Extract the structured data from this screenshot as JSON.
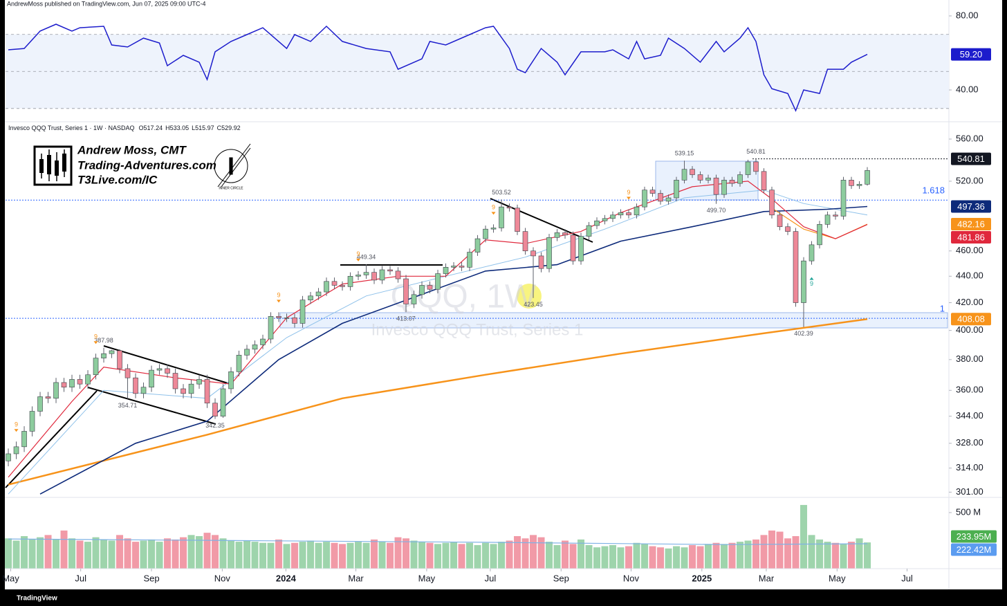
{
  "header": {
    "published": "AndrewMoss published on TradingView.com, Jun 07, 2025 09:00 UTC-4"
  },
  "logo": {
    "name": "Andrew Moss, CMT",
    "site": "Trading-Adventures.com",
    "site2": "T3Live.com/IC",
    "badge": "INNER CIRCLE"
  },
  "footer": {
    "brand": "TradingView"
  },
  "chart_data": {
    "type": "candlestick",
    "title": "Invesco QQQ Trust, Series 1 · 1W · NASDAQ",
    "legend_ohlc": [
      {
        "value": 517.24,
        "label": "O517.24"
      },
      {
        "value": 533.05,
        "label": "H533.05"
      },
      {
        "value": 515.97,
        "label": "L515.97"
      },
      {
        "value": 529.92,
        "label": "C529.92"
      }
    ],
    "watermark": {
      "symbol": "QQQ, 1W",
      "name": "Invesco QQQ Trust, Series 1"
    },
    "up_color": "#8dcc9e",
    "down_color": "#ee8898",
    "log": true,
    "x": [
      0,
      1,
      2,
      3,
      4,
      5,
      6,
      7,
      8,
      9,
      10,
      11,
      12,
      13,
      14,
      15,
      16,
      17,
      18,
      19,
      20,
      21,
      22,
      23,
      24,
      25,
      26,
      27,
      28,
      29,
      30,
      31,
      32,
      33,
      34,
      35,
      36,
      37,
      38,
      39,
      40,
      41,
      42,
      43,
      44,
      45,
      46,
      47,
      48,
      49,
      50,
      51,
      52,
      53,
      54,
      55,
      56,
      57,
      58,
      59,
      60,
      61,
      62,
      63,
      64,
      65,
      66,
      67,
      68,
      69,
      70,
      71,
      72,
      73,
      74,
      75,
      76,
      77,
      78,
      79,
      80,
      81,
      82,
      83,
      84,
      85,
      86,
      87,
      88,
      89,
      90,
      91,
      92,
      93,
      94,
      95,
      96,
      97,
      98,
      99,
      100,
      101,
      102,
      103,
      104,
      105,
      106,
      107,
      108
    ],
    "open": [
      318,
      322,
      326,
      335,
      347,
      356,
      355,
      365,
      362,
      367,
      364,
      370,
      381,
      384,
      386,
      374,
      368,
      358,
      362,
      373,
      374,
      371,
      361,
      358,
      364,
      367,
      352,
      344,
      361,
      372,
      383,
      387,
      390,
      394,
      410,
      409,
      409,
      405,
      422,
      425,
      428,
      436,
      433,
      432,
      440,
      441,
      443,
      437,
      445,
      444,
      438,
      419,
      426,
      433,
      430,
      442,
      447,
      448,
      447,
      459,
      470,
      478,
      479,
      497,
      496,
      476,
      460,
      456,
      446,
      471,
      475,
      473,
      452,
      472,
      481,
      485,
      487,
      490,
      492,
      490,
      497,
      512,
      509,
      502,
      505,
      521,
      531,
      526,
      521,
      523,
      508,
      521,
      518,
      526,
      538,
      529,
      512,
      490,
      480,
      476,
      420,
      452,
      465,
      482,
      490,
      489,
      521,
      516,
      517.24
    ],
    "high": [
      325,
      329,
      338,
      350,
      359,
      359,
      368,
      368,
      370,
      370,
      373,
      384,
      387.98,
      386.5,
      387,
      377,
      371,
      365,
      376,
      377,
      377,
      374,
      364,
      367,
      370,
      370,
      355,
      364,
      375,
      386,
      390,
      393,
      397,
      413,
      413,
      412,
      412,
      425,
      428,
      431,
      439,
      439,
      436,
      443,
      444,
      449.34,
      446,
      448,
      448,
      447,
      441,
      429,
      436,
      436,
      445,
      450,
      451,
      451,
      462,
      473,
      481,
      482,
      503.52,
      500,
      499,
      479,
      463,
      459,
      474,
      478,
      478,
      476,
      475,
      484,
      488,
      490,
      493,
      495,
      495,
      500,
      515,
      515,
      512,
      508,
      524,
      539.15,
      534,
      529,
      526,
      526,
      524,
      524,
      529,
      540,
      540.81,
      532,
      515,
      493,
      483,
      479,
      455,
      468,
      485,
      493,
      493,
      524,
      524,
      520,
      533.05
    ],
    "low": [
      315,
      319,
      323,
      332,
      344,
      352,
      352,
      359,
      359,
      361,
      361,
      367,
      378,
      381,
      371,
      354.71,
      355,
      355,
      359,
      370,
      368,
      358,
      355,
      355,
      361,
      349,
      342.35,
      343,
      358,
      369,
      380,
      384,
      387,
      391,
      406,
      406,
      402,
      402,
      419,
      422,
      425,
      430,
      429,
      429,
      437,
      438,
      434,
      434,
      441,
      435,
      413.07,
      416,
      423,
      427,
      427,
      439,
      444,
      444,
      444,
      456,
      467,
      475,
      476,
      493,
      473,
      457,
      423.45,
      443,
      443,
      468,
      470,
      449,
      449,
      469,
      478,
      482,
      484,
      487,
      487,
      487,
      494,
      506,
      499,
      499,
      502,
      518,
      523,
      518,
      518,
      499.7,
      505,
      515,
      515,
      523,
      526,
      509,
      487,
      477,
      473,
      417,
      402.39,
      449,
      462,
      479,
      486,
      486,
      513,
      513,
      515.97
    ],
    "close": [
      322,
      326,
      335,
      347,
      356,
      355,
      365,
      362,
      367,
      364,
      370,
      381,
      384,
      386,
      374,
      368,
      358,
      362,
      373,
      374,
      371,
      361,
      358,
      364,
      367,
      352,
      344,
      361,
      372,
      383,
      387,
      390,
      394,
      410,
      409,
      409,
      405,
      422,
      425,
      428,
      436,
      433,
      432,
      440,
      441,
      443,
      437,
      445,
      444,
      438,
      419,
      426,
      433,
      430,
      442,
      447,
      448,
      447,
      459,
      470,
      478,
      479,
      497,
      496,
      476,
      460,
      456,
      446,
      471,
      475,
      473,
      452,
      472,
      481,
      485,
      487,
      490,
      492,
      490,
      497,
      512,
      509,
      502,
      505,
      521,
      531,
      526,
      521,
      523,
      508,
      521,
      518,
      526,
      538,
      529,
      512,
      490,
      480,
      476,
      420,
      452,
      465,
      482,
      490,
      489,
      521,
      516,
      517.24,
      529.92
    ],
    "xlim": [
      -0.35,
      118.26
    ],
    "xticks": [
      {
        "value": 0.3,
        "label": "May"
      },
      {
        "value": 9.1,
        "label": "Jul"
      },
      {
        "value": 18,
        "label": "Sep"
      },
      {
        "value": 26.9,
        "label": "Nov"
      },
      {
        "value": 34.9,
        "label": "2024"
      },
      {
        "value": 43.7,
        "label": "Mar"
      },
      {
        "value": 52.6,
        "label": "May"
      },
      {
        "value": 60.6,
        "label": "Jul"
      },
      {
        "value": 69.5,
        "label": "Sep"
      },
      {
        "value": 78.3,
        "label": "Nov"
      },
      {
        "value": 87.2,
        "label": "2025"
      },
      {
        "value": 95.3,
        "label": "Mar"
      },
      {
        "value": 104.2,
        "label": "May"
      },
      {
        "value": 113,
        "label": "Jul"
      }
    ],
    "ylim": [
      298.6,
      575.9
    ],
    "yticks": [
      {
        "value": 560,
        "label": "560.00"
      },
      {
        "value": 520,
        "label": "520.00"
      },
      {
        "value": 460,
        "label": "460.00"
      },
      {
        "value": 440,
        "label": "440.00"
      },
      {
        "value": 420,
        "label": "420.00"
      },
      {
        "value": 400,
        "label": "400.00"
      },
      {
        "value": 380,
        "label": "380.00"
      },
      {
        "value": 360,
        "label": "360.00"
      },
      {
        "value": 344,
        "label": "344.00"
      },
      {
        "value": 328,
        "label": "328.00"
      },
      {
        "value": 314,
        "label": "314.00"
      },
      {
        "value": 301,
        "label": "301.00"
      }
    ],
    "lines": [
      {
        "color": "#f7931a",
        "width": 2.5,
        "x": [
          0,
          25,
          42,
          60,
          77,
          95,
          108
        ],
        "values": [
          305,
          333,
          355,
          370,
          384,
          398,
          408.08
        ],
        "last_label": {
          "value": 408.08,
          "label": "408.08"
        }
      },
      {
        "color": "#8ec1ea",
        "width": 1,
        "x": [
          0,
          12,
          25,
          35,
          45,
          55,
          65,
          75,
          85,
          95,
          100,
          108
        ],
        "values": [
          300,
          360,
          355,
          395,
          425,
          440,
          455,
          478,
          505,
          512,
          500,
          490
        ]
      },
      {
        "color": "#0d2a7a",
        "width": 1.6,
        "x": [
          4,
          16,
          25,
          34,
          42,
          51,
          60,
          69,
          77,
          86,
          95,
          103,
          108
        ],
        "values": [
          300,
          328,
          341,
          380,
          405,
          424,
          444,
          449,
          468,
          480,
          493,
          495,
          497.36
        ],
        "last_label": {
          "value": 497.36,
          "label": "497.36"
        }
      },
      {
        "color": "#f7931a",
        "width": 1.2,
        "x": [
          96,
          100,
          104,
          108
        ],
        "values": [
          496,
          478,
          470,
          482.16
        ],
        "last_label": {
          "value": 482.16,
          "label": "482.16"
        }
      },
      {
        "color": "#e0283c",
        "width": 1.2,
        "x": [
          0,
          8,
          12,
          21,
          28,
          35,
          42,
          49,
          55,
          60,
          65,
          72,
          77,
          86,
          93,
          96,
          100,
          104,
          108
        ],
        "values": [
          309,
          353,
          375,
          368,
          364,
          409,
          434,
          440,
          440,
          469,
          466,
          476,
          492,
          515,
          520,
          504,
          480,
          470,
          481.86
        ],
        "last_label": {
          "value": 481.86,
          "label": "481.86"
        }
      }
    ],
    "price_line": {
      "value": 540.81,
      "label": "540.81"
    },
    "fib_levels": [
      {
        "level": 1.618,
        "price": 503
      },
      {
        "level": 1,
        "price": 408.6
      }
    ],
    "annotations": [
      {
        "x": 12,
        "value": 387.98,
        "label": "387.98",
        "pos": "above"
      },
      {
        "x": 15,
        "value": 354.71,
        "label": "354.71",
        "pos": "below"
      },
      {
        "x": 26,
        "value": 342.35,
        "label": "342.35",
        "pos": "below"
      },
      {
        "x": 45,
        "value": 449.34,
        "label": "449.34",
        "pos": "above"
      },
      {
        "x": 50,
        "value": 413.07,
        "label": "413.07",
        "pos": "below"
      },
      {
        "x": 62,
        "value": 503.52,
        "label": "503.52",
        "pos": "above"
      },
      {
        "x": 66,
        "value": 423.45,
        "label": "423.45",
        "pos": "below"
      },
      {
        "x": 85,
        "value": 539.15,
        "label": "539.15",
        "pos": "above"
      },
      {
        "x": 94,
        "value": 540.81,
        "label": "540.81",
        "pos": "above"
      },
      {
        "x": 89,
        "value": 499.7,
        "label": "499.70",
        "pos": "below"
      },
      {
        "x": 100,
        "value": 402.39,
        "label": "402.39",
        "pos": "below"
      }
    ],
    "td_marks": [
      {
        "x": 1,
        "label": "9",
        "pos": "above",
        "color": "#f7931a"
      },
      {
        "x": 11,
        "label": "9",
        "pos": "above",
        "color": "#f7931a"
      },
      {
        "x": 34,
        "label": "9",
        "pos": "above",
        "color": "#f7931a"
      },
      {
        "x": 44,
        "label": "9",
        "pos": "above",
        "color": "#f7931a"
      },
      {
        "x": 61,
        "label": "9",
        "pos": "above",
        "color": "#f7931a"
      },
      {
        "x": 78,
        "label": "9",
        "pos": "above",
        "color": "#f7931a"
      },
      {
        "x": 101,
        "label": "9",
        "pos": "below",
        "color": "#26a69a"
      }
    ],
    "rsi": {
      "color": "#1c1ccc",
      "x": [
        0,
        2,
        4,
        6,
        8,
        9,
        12,
        13,
        15,
        17,
        19,
        20,
        22,
        24,
        25,
        26,
        28,
        30,
        32,
        35,
        36,
        38,
        40,
        42,
        45,
        48,
        49,
        52,
        53,
        55,
        58,
        60,
        61,
        63,
        64,
        65,
        67,
        69,
        70,
        72,
        75,
        76,
        78,
        79,
        80,
        82,
        83,
        85,
        87,
        89,
        90,
        92,
        93,
        94,
        95,
        96,
        98,
        99,
        100,
        102,
        103,
        105,
        106,
        108
      ],
      "values": [
        61.7,
        62.4,
        71.8,
        75.5,
        71.8,
        73.6,
        74.4,
        64.3,
        63.2,
        68.0,
        65.4,
        53.1,
        58.7,
        55.0,
        45.6,
        60.6,
        66.2,
        69.9,
        73.6,
        62.4,
        69.9,
        66.2,
        74.4,
        66.2,
        62.4,
        60.6,
        51.2,
        56.8,
        66.2,
        64.3,
        69.9,
        73.6,
        74.4,
        62.4,
        51.2,
        49.3,
        62.4,
        55.0,
        48.2,
        60.6,
        60.6,
        61.7,
        56.8,
        66.2,
        56.8,
        58.7,
        68.0,
        62.4,
        55.0,
        66.2,
        60.6,
        68.0,
        73.6,
        66.2,
        48.2,
        40.7,
        38.1,
        28.8,
        40.0,
        38.1,
        51.2,
        51.2,
        55.0,
        59.2
      ],
      "ylim": [
        28.8,
        85.6
      ],
      "yticks": [
        {
          "value": 80,
          "label": "80.00"
        },
        {
          "value": 40,
          "label": "40.00"
        }
      ],
      "levels": [
        30,
        50,
        70
      ],
      "last_label": {
        "value": 59.2,
        "label": "59.20"
      }
    },
    "volume": {
      "values": [
        270,
        250,
        290,
        260,
        280,
        300,
        260,
        340,
        270,
        250,
        240,
        280,
        260,
        250,
        300,
        270,
        240,
        250,
        260,
        240,
        270,
        260,
        280,
        300,
        290,
        320,
        300,
        270,
        250,
        240,
        250,
        240,
        230,
        230,
        260,
        220,
        230,
        240,
        250,
        230,
        240,
        230,
        220,
        230,
        240,
        230,
        260,
        240,
        230,
        280,
        270,
        250,
        240,
        230,
        220,
        230,
        240,
        220,
        230,
        210,
        230,
        220,
        240,
        250,
        290,
        270,
        300,
        280,
        240,
        210,
        250,
        220,
        260,
        210,
        190,
        200,
        210,
        190,
        200,
        230,
        220,
        200,
        190,
        180,
        200,
        190,
        210,
        200,
        220,
        230,
        220,
        230,
        240,
        250,
        260,
        300,
        340,
        330,
        270,
        290,
        568,
        300,
        260,
        240,
        230,
        220,
        240,
        270,
        233.95
      ],
      "ylim": [
        0,
        617
      ],
      "yticks": [
        {
          "value": 500,
          "label": "500 M"
        }
      ],
      "last_label": {
        "value": 233.95,
        "label": "233.95M",
        "color": "#4caf50"
      },
      "ma": {
        "color": "#7fb2e5",
        "x": [
          0,
          30,
          60,
          90,
          108
        ],
        "values": [
          265,
          250,
          235,
          215,
          222.42
        ]
      },
      "ma_label": {
        "value": 222.42,
        "label": "222.42M",
        "color": "#5b9cf0"
      }
    }
  }
}
